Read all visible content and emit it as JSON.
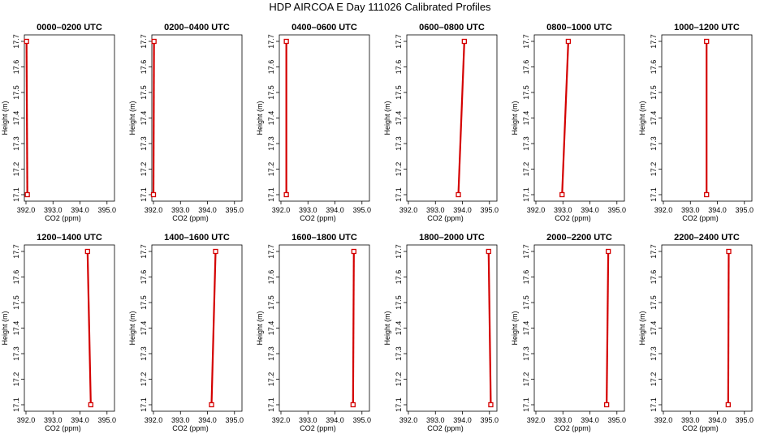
{
  "figure": {
    "title": "HDP AIRCOA E  Day 111026  Calibrated Profiles"
  },
  "chart_data": [
    {
      "type": "line",
      "title": "0000–0200 UTC",
      "xlabel": "CO2 (ppm)",
      "ylabel": "Height (m)",
      "xlim": [
        392.0,
        395.0
      ],
      "ylim": [
        17.1,
        17.7
      ],
      "color": "#d40000",
      "xticks": [
        "392.0",
        "393.0",
        "394.0",
        "395.0"
      ],
      "yticks": [
        "17.1",
        "17.2",
        "17.3",
        "17.4",
        "17.5",
        "17.6",
        "17.7"
      ],
      "series": [
        {
          "x": [
            392.05,
            392.02
          ],
          "y": [
            17.1,
            17.7
          ]
        }
      ]
    },
    {
      "type": "line",
      "title": "0200–0400 UTC",
      "xlabel": "CO2 (ppm)",
      "ylabel": "Height (m)",
      "xlim": [
        392.0,
        395.0
      ],
      "ylim": [
        17.1,
        17.7
      ],
      "color": "#d40000",
      "xticks": [
        "392.0",
        "393.0",
        "394.0",
        "395.0"
      ],
      "yticks": [
        "17.1",
        "17.2",
        "17.3",
        "17.4",
        "17.5",
        "17.6",
        "17.7"
      ],
      "series": [
        {
          "x": [
            392.0,
            392.02
          ],
          "y": [
            17.1,
            17.7
          ]
        }
      ]
    },
    {
      "type": "line",
      "title": "0400–0600 UTC",
      "xlabel": "CO2 (ppm)",
      "ylabel": "Height (m)",
      "xlim": [
        392.0,
        395.0
      ],
      "ylim": [
        17.1,
        17.7
      ],
      "color": "#d40000",
      "xticks": [
        "392.0",
        "393.0",
        "394.0",
        "395.0"
      ],
      "yticks": [
        "17.1",
        "17.2",
        "17.3",
        "17.4",
        "17.5",
        "17.6",
        "17.7"
      ],
      "series": [
        {
          "x": [
            392.2,
            392.2
          ],
          "y": [
            17.1,
            17.7
          ]
        }
      ]
    },
    {
      "type": "line",
      "title": "0600–0800 UTC",
      "xlabel": "CO2 (ppm)",
      "ylabel": "Height (m)",
      "xlim": [
        392.0,
        395.0
      ],
      "ylim": [
        17.1,
        17.7
      ],
      "color": "#d40000",
      "xticks": [
        "392.0",
        "393.0",
        "394.0",
        "395.0"
      ],
      "yticks": [
        "17.1",
        "17.2",
        "17.3",
        "17.4",
        "17.5",
        "17.6",
        "17.7"
      ],
      "series": [
        {
          "x": [
            393.85,
            394.07
          ],
          "y": [
            17.1,
            17.7
          ]
        }
      ]
    },
    {
      "type": "line",
      "title": "0800–1000 UTC",
      "xlabel": "CO2 (ppm)",
      "ylabel": "Height (m)",
      "xlim": [
        392.0,
        395.0
      ],
      "ylim": [
        17.1,
        17.7
      ],
      "color": "#d40000",
      "xticks": [
        "392.0",
        "393.0",
        "394.0",
        "395.0"
      ],
      "yticks": [
        "17.1",
        "17.2",
        "17.3",
        "17.4",
        "17.5",
        "17.6",
        "17.7"
      ],
      "series": [
        {
          "x": [
            392.97,
            393.2
          ],
          "y": [
            17.1,
            17.7
          ]
        }
      ]
    },
    {
      "type": "line",
      "title": "1000–1200 UTC",
      "xlabel": "CO2 (ppm)",
      "ylabel": "Height (m)",
      "xlim": [
        392.0,
        395.0
      ],
      "ylim": [
        17.1,
        17.7
      ],
      "color": "#d40000",
      "xticks": [
        "392.0",
        "393.0",
        "394.0",
        "395.0"
      ],
      "yticks": [
        "17.1",
        "17.2",
        "17.3",
        "17.4",
        "17.5",
        "17.6",
        "17.7"
      ],
      "series": [
        {
          "x": [
            393.6,
            393.6
          ],
          "y": [
            17.1,
            17.7
          ]
        }
      ]
    },
    {
      "type": "line",
      "title": "1200–1400 UTC",
      "xlabel": "CO2 (ppm)",
      "ylabel": "Height (m)",
      "xlim": [
        392.0,
        395.0
      ],
      "ylim": [
        17.1,
        17.7
      ],
      "color": "#d40000",
      "xticks": [
        "392.0",
        "393.0",
        "394.0",
        "395.0"
      ],
      "yticks": [
        "17.1",
        "17.2",
        "17.3",
        "17.4",
        "17.5",
        "17.6",
        "17.7"
      ],
      "series": [
        {
          "x": [
            394.4,
            394.28
          ],
          "y": [
            17.1,
            17.7
          ]
        }
      ]
    },
    {
      "type": "line",
      "title": "1400–1600 UTC",
      "xlabel": "CO2 (ppm)",
      "ylabel": "Height (m)",
      "xlim": [
        392.0,
        395.0
      ],
      "ylim": [
        17.1,
        17.7
      ],
      "color": "#d40000",
      "xticks": [
        "392.0",
        "393.0",
        "394.0",
        "395.0"
      ],
      "yticks": [
        "17.1",
        "17.2",
        "17.3",
        "17.4",
        "17.5",
        "17.6",
        "17.7"
      ],
      "series": [
        {
          "x": [
            394.15,
            394.3
          ],
          "y": [
            17.1,
            17.7
          ]
        }
      ]
    },
    {
      "type": "line",
      "title": "1600–1800 UTC",
      "xlabel": "CO2 (ppm)",
      "ylabel": "Height (m)",
      "xlim": [
        392.0,
        395.0
      ],
      "ylim": [
        17.1,
        17.7
      ],
      "color": "#d40000",
      "xticks": [
        "392.0",
        "393.0",
        "394.0",
        "395.0"
      ],
      "yticks": [
        "17.1",
        "17.2",
        "17.3",
        "17.4",
        "17.5",
        "17.6",
        "17.7"
      ],
      "series": [
        {
          "x": [
            394.67,
            394.7
          ],
          "y": [
            17.1,
            17.7
          ]
        }
      ]
    },
    {
      "type": "line",
      "title": "1800–2000 UTC",
      "xlabel": "CO2 (ppm)",
      "ylabel": "Height (m)",
      "xlim": [
        392.0,
        395.0
      ],
      "ylim": [
        17.1,
        17.7
      ],
      "color": "#d40000",
      "xticks": [
        "392.0",
        "393.0",
        "394.0",
        "395.0"
      ],
      "yticks": [
        "17.1",
        "17.2",
        "17.3",
        "17.4",
        "17.5",
        "17.6",
        "17.7"
      ],
      "series": [
        {
          "x": [
            395.05,
            394.97
          ],
          "y": [
            17.1,
            17.7
          ]
        }
      ]
    },
    {
      "type": "line",
      "title": "2000–2200 UTC",
      "xlabel": "CO2 (ppm)",
      "ylabel": "Height (m)",
      "xlim": [
        392.0,
        395.0
      ],
      "ylim": [
        17.1,
        17.7
      ],
      "color": "#d40000",
      "xticks": [
        "392.0",
        "393.0",
        "394.0",
        "395.0"
      ],
      "yticks": [
        "17.1",
        "17.2",
        "17.3",
        "17.4",
        "17.5",
        "17.6",
        "17.7"
      ],
      "series": [
        {
          "x": [
            394.62,
            394.68
          ],
          "y": [
            17.1,
            17.7
          ]
        }
      ]
    },
    {
      "type": "line",
      "title": "2200–2400 UTC",
      "xlabel": "CO2 (ppm)",
      "ylabel": "Height (m)",
      "xlim": [
        392.0,
        395.0
      ],
      "ylim": [
        17.1,
        17.7
      ],
      "color": "#d40000",
      "xticks": [
        "392.0",
        "393.0",
        "394.0",
        "395.0"
      ],
      "yticks": [
        "17.1",
        "17.2",
        "17.3",
        "17.4",
        "17.5",
        "17.6",
        "17.7"
      ],
      "series": [
        {
          "x": [
            394.4,
            394.42
          ],
          "y": [
            17.1,
            17.7
          ]
        }
      ]
    }
  ]
}
